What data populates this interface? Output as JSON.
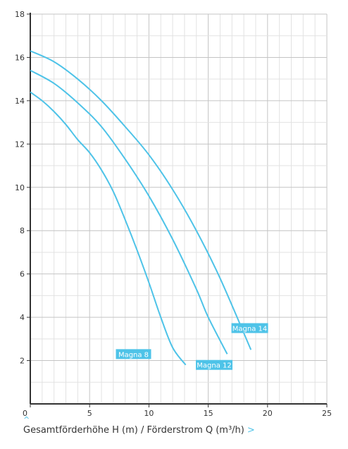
{
  "chart_data": {
    "type": "line",
    "xlim": [
      0,
      25
    ],
    "ylim": [
      0,
      18
    ],
    "x_ticks": [
      "0",
      "5",
      "10",
      "15",
      "20",
      "25"
    ],
    "y_ticks": [
      "2",
      "4",
      "6",
      "8",
      "10",
      "12",
      "14",
      "16",
      "18"
    ],
    "grid": true,
    "xlabel": "Gesamtförderhöhe H (m) / Förderstrom Q (m³/h)",
    "colors": {
      "line": "#4ec3e8",
      "label_bg": "#4ec3e8",
      "grid": "#d6d6d6",
      "axis": "#333333"
    },
    "series": [
      {
        "name": "Magna 8",
        "x": [
          0,
          1,
          2,
          3,
          4,
          5,
          6,
          7,
          8,
          9,
          10,
          11,
          12,
          13.1
        ],
        "y": [
          14.4,
          14.0,
          13.5,
          12.9,
          12.2,
          11.6,
          10.8,
          9.8,
          8.5,
          7.1,
          5.6,
          4.0,
          2.6,
          1.8
        ]
      },
      {
        "name": "Magna 12",
        "x": [
          0,
          2,
          4,
          6,
          8,
          10,
          12,
          14,
          15,
          16.6
        ],
        "y": [
          15.4,
          14.8,
          13.9,
          12.8,
          11.3,
          9.6,
          7.6,
          5.3,
          4.0,
          2.3
        ]
      },
      {
        "name": "Magna 14",
        "x": [
          0,
          2,
          4,
          6,
          8,
          10,
          12,
          14,
          16,
          18.6
        ],
        "y": [
          16.3,
          15.8,
          15.0,
          14.0,
          12.8,
          11.5,
          9.9,
          8.0,
          5.8,
          2.5
        ]
      }
    ],
    "annotations": [
      {
        "text": "Magna 8",
        "series": "Magna 8"
      },
      {
        "text": "Magna 12",
        "series": "Magna 12"
      },
      {
        "text": "Magna 14",
        "series": "Magna 14"
      }
    ]
  },
  "footer": {
    "caption": "Gesamtförderhöhe H (m) / Förderstrom Q (m³/h)",
    "expand_icon": "chevron-up-icon",
    "next_icon": "chevron-right-icon"
  }
}
